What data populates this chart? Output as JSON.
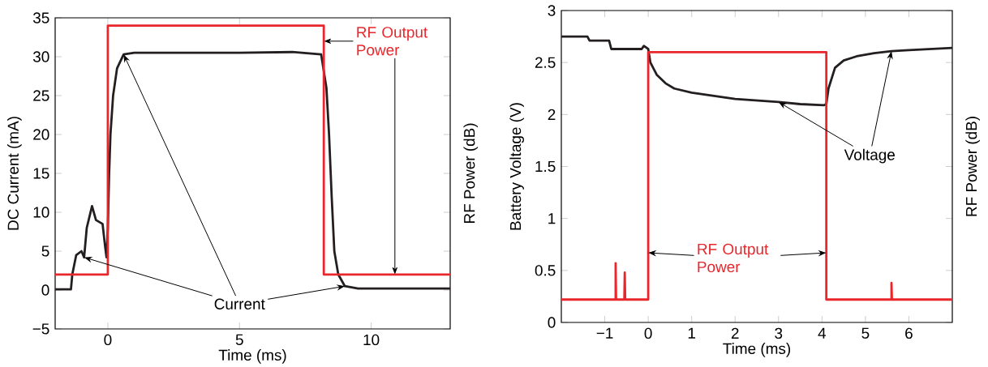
{
  "chart_data": [
    {
      "type": "line",
      "xlabel": "Time (ms)",
      "ylabel": "DC Current (mA)",
      "y2label": "RF Power (dB)",
      "xlim": [
        -2,
        13
      ],
      "ylim": [
        -5,
        35
      ],
      "xticks": [
        0,
        5,
        10
      ],
      "yticks": [
        {
          "value": -5,
          "label": "−5"
        },
        0,
        5,
        10,
        15,
        20,
        25,
        30,
        35
      ],
      "series": [
        {
          "color": "#231f20",
          "x": [
            -2,
            -1.4,
            -1.35,
            -1.2,
            -1.0,
            -0.9,
            -0.8,
            -0.6,
            -0.45,
            -0.2,
            -0.1,
            -0.05,
            0,
            0.05,
            0.1,
            0.2,
            0.35,
            0.6,
            1,
            3,
            5,
            7,
            8.1,
            8.3,
            8.4,
            8.5,
            8.6,
            8.75,
            9,
            9.5,
            11,
            13
          ],
          "values": [
            0.1,
            0.1,
            2,
            4.5,
            5,
            4.2,
            8,
            10.8,
            9,
            8.5,
            5.5,
            4.2,
            8,
            15,
            20,
            25,
            28.5,
            30.3,
            30.5,
            30.5,
            30.5,
            30.6,
            30.3,
            26,
            20,
            12,
            5,
            2,
            0.5,
            0.2,
            0.2,
            0.2
          ]
        },
        {
          "color": "#e8262b",
          "x": [
            -2,
            0,
            0,
            8.2,
            8.2,
            13
          ],
          "values": [
            2,
            2,
            34,
            34,
            2,
            2
          ]
        }
      ],
      "annotations": [
        {
          "text": "RF Output Power",
          "x": 8.2,
          "y": 32
        },
        {
          "text": "Current",
          "x": -0.9,
          "y": 4.2
        }
      ]
    },
    {
      "type": "line",
      "xlabel": "Time (ms)",
      "ylabel": "Battery Voltage (V)",
      "y2label": "RF Power (dB)",
      "xlim": [
        -2,
        7
      ],
      "ylim": [
        0,
        3
      ],
      "xticks": [
        {
          "value": -1,
          "label": "−1"
        },
        0,
        1,
        2,
        3,
        4,
        5,
        6
      ],
      "yticks": [
        0,
        0.5,
        1,
        1.5,
        2,
        2.5,
        3
      ],
      "series": [
        {
          "color": "#231f20",
          "x": [
            -2,
            -1.4,
            -1.35,
            -0.9,
            -0.85,
            -0.15,
            -0.1,
            0,
            0.05,
            0.2,
            0.4,
            0.6,
            1,
            1.5,
            2,
            3,
            3.5,
            4.05,
            4.1,
            4.15,
            4.3,
            4.5,
            4.8,
            5.2,
            5.6,
            6,
            7
          ],
          "values": [
            2.75,
            2.75,
            2.71,
            2.71,
            2.63,
            2.63,
            2.66,
            2.63,
            2.5,
            2.38,
            2.3,
            2.25,
            2.21,
            2.18,
            2.15,
            2.12,
            2.1,
            2.09,
            2.1,
            2.25,
            2.45,
            2.52,
            2.56,
            2.59,
            2.61,
            2.62,
            2.64
          ]
        },
        {
          "color": "#e8262b",
          "x": [
            -2,
            -0.75,
            -0.75,
            -0.74,
            -0.55,
            -0.54,
            -0.53,
            0,
            0,
            4.1,
            4.1,
            5.6,
            5.6,
            5.61,
            7
          ],
          "values": [
            0.22,
            0.22,
            0.57,
            0.22,
            0.22,
            0.48,
            0.22,
            0.22,
            2.6,
            2.6,
            0.22,
            0.22,
            0.38,
            0.22,
            0.22
          ]
        }
      ],
      "annotations": [
        {
          "text": "Voltage",
          "x": 3,
          "y": 2.12
        },
        {
          "text": "RF Output Power",
          "x": 0,
          "y": 0.67
        }
      ]
    }
  ]
}
